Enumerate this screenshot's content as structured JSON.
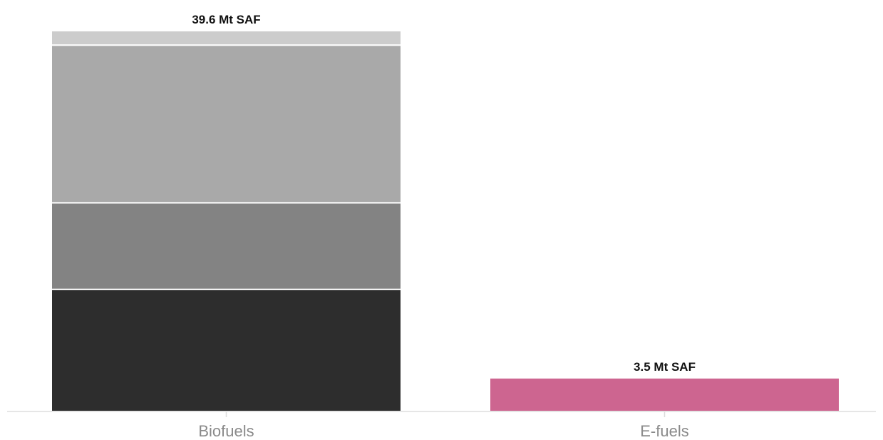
{
  "chart_data": {
    "type": "bar",
    "stacked": true,
    "unit": "Mt SAF",
    "categories": [
      "Biofuels",
      "E-fuels"
    ],
    "bars": [
      {
        "category": "Biofuels",
        "total": 39.6,
        "total_label": "39.6 Mt SAF",
        "segments": [
          {
            "value": 12.7,
            "color": "#2d2d2d"
          },
          {
            "value": 9.0,
            "color": "#838383"
          },
          {
            "value": 16.4,
            "color": "#a9a9a9"
          },
          {
            "value": 1.5,
            "color": "#cccccc"
          }
        ]
      },
      {
        "category": "E-fuels",
        "total": 3.5,
        "total_label": "3.5 Mt SAF",
        "segments": [
          {
            "value": 3.5,
            "color": "#cd6590"
          }
        ]
      }
    ],
    "ylim": [
      0,
      39.6
    ],
    "grid": false,
    "legend": "none"
  }
}
